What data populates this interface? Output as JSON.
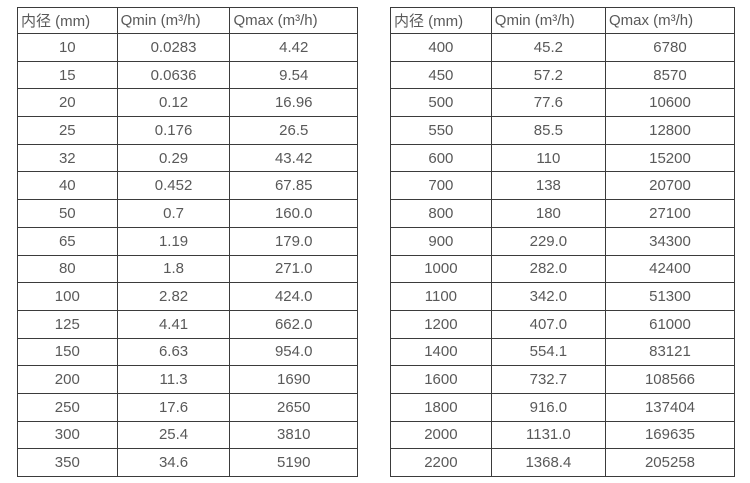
{
  "colors": {
    "border": "#3b3b3b",
    "text": "#595959",
    "background": "#ffffff"
  },
  "tables": [
    {
      "name": "flow-table-small-diameters",
      "headers": [
        "内径 (mm)",
        "Qmin (m³/h)",
        "Qmax (m³/h)"
      ],
      "rows": [
        [
          "10",
          "0.0283",
          "4.42"
        ],
        [
          "15",
          "0.0636",
          "9.54"
        ],
        [
          "20",
          "0.12",
          "16.96"
        ],
        [
          "25",
          "0.176",
          "26.5"
        ],
        [
          "32",
          "0.29",
          "43.42"
        ],
        [
          "40",
          "0.452",
          "67.85"
        ],
        [
          "50",
          "0.7",
          "160.0"
        ],
        [
          "65",
          "1.19",
          "179.0"
        ],
        [
          "80",
          "1.8",
          "271.0"
        ],
        [
          "100",
          "2.82",
          "424.0"
        ],
        [
          "125",
          "4.41",
          "662.0"
        ],
        [
          "150",
          "6.63",
          "954.0"
        ],
        [
          "200",
          "11.3",
          "1690"
        ],
        [
          "250",
          "17.6",
          "2650"
        ],
        [
          "300",
          "25.4",
          "3810"
        ],
        [
          "350",
          "34.6",
          "5190"
        ]
      ]
    },
    {
      "name": "flow-table-large-diameters",
      "headers": [
        "内径 (mm)",
        "Qmin (m³/h)",
        "Qmax (m³/h)"
      ],
      "rows": [
        [
          "400",
          "45.2",
          "6780"
        ],
        [
          "450",
          "57.2",
          "8570"
        ],
        [
          "500",
          "77.6",
          "10600"
        ],
        [
          "550",
          "85.5",
          "12800"
        ],
        [
          "600",
          "110",
          "15200"
        ],
        [
          "700",
          "138",
          "20700"
        ],
        [
          "800",
          "180",
          "27100"
        ],
        [
          "900",
          "229.0",
          "34300"
        ],
        [
          "1000",
          "282.0",
          "42400"
        ],
        [
          "1100",
          "342.0",
          "51300"
        ],
        [
          "1200",
          "407.0",
          "61000"
        ],
        [
          "1400",
          "554.1",
          "83121"
        ],
        [
          "1600",
          "732.7",
          "108566"
        ],
        [
          "1800",
          "916.0",
          "137404"
        ],
        [
          "2000",
          "1131.0",
          "169635"
        ],
        [
          "2200",
          "1368.4",
          "205258"
        ]
      ]
    }
  ]
}
